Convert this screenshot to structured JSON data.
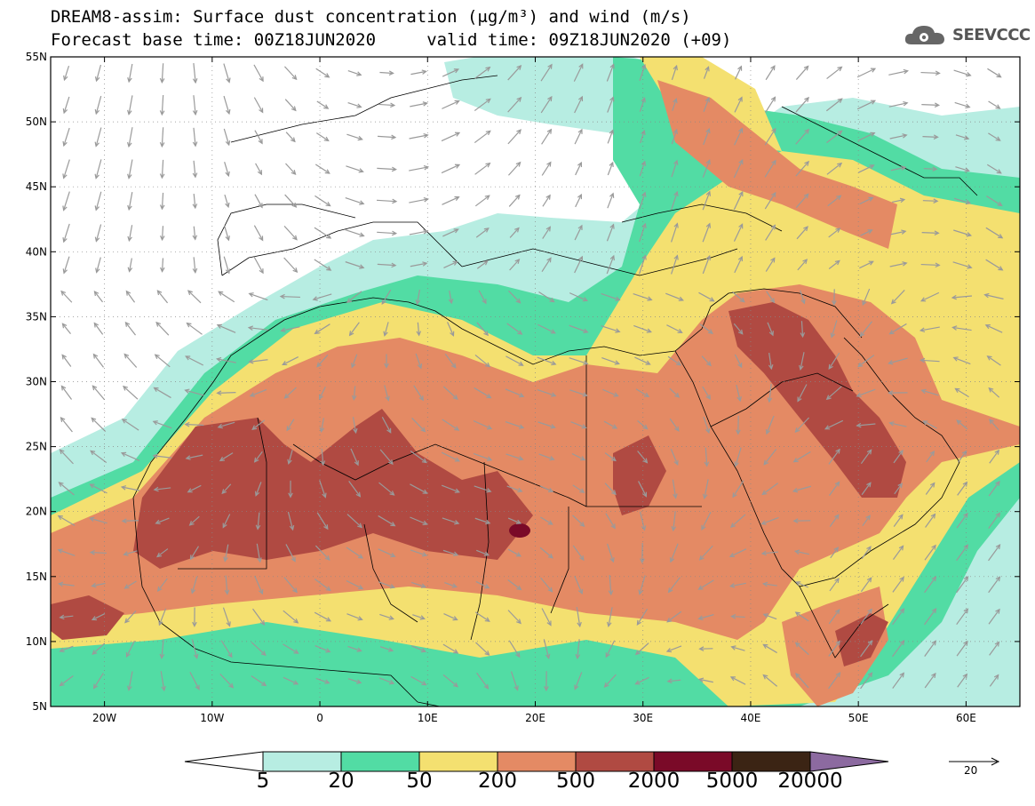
{
  "title": {
    "line1": "DREAM8-assim: Surface dust concentration (μg/m³) and wind (m/s)",
    "line2": "Forecast base time: 00Z18JUN2020     valid time: 09Z18JUN2020 (+09)"
  },
  "logo": {
    "text": "SEEVCCC",
    "icon": "cloud-gear-icon"
  },
  "map": {
    "lon_range": [
      -25,
      65
    ],
    "lat_range": [
      5,
      55
    ],
    "lat_labels": [
      "55N",
      "50N",
      "45N",
      "40N",
      "35N",
      "30N",
      "25N",
      "20N",
      "15N",
      "10N",
      "5N"
    ],
    "lon_labels": [
      "20W",
      "10W",
      "0",
      "10E",
      "20E",
      "30E",
      "40E",
      "50E",
      "60E"
    ],
    "gridlines": "dotted"
  },
  "colorbar": {
    "labels": [
      "5",
      "20",
      "50",
      "200",
      "500",
      "2000",
      "5000",
      "20000"
    ],
    "colors": [
      "#ffffff",
      "#b7ede2",
      "#52dca4",
      "#f4e070",
      "#e48a64",
      "#b04a42",
      "#7a0a28",
      "#3b2414",
      "#8c6aa0"
    ]
  },
  "wind_reference": {
    "value": "20",
    "icon": "arrow-right-icon"
  }
}
